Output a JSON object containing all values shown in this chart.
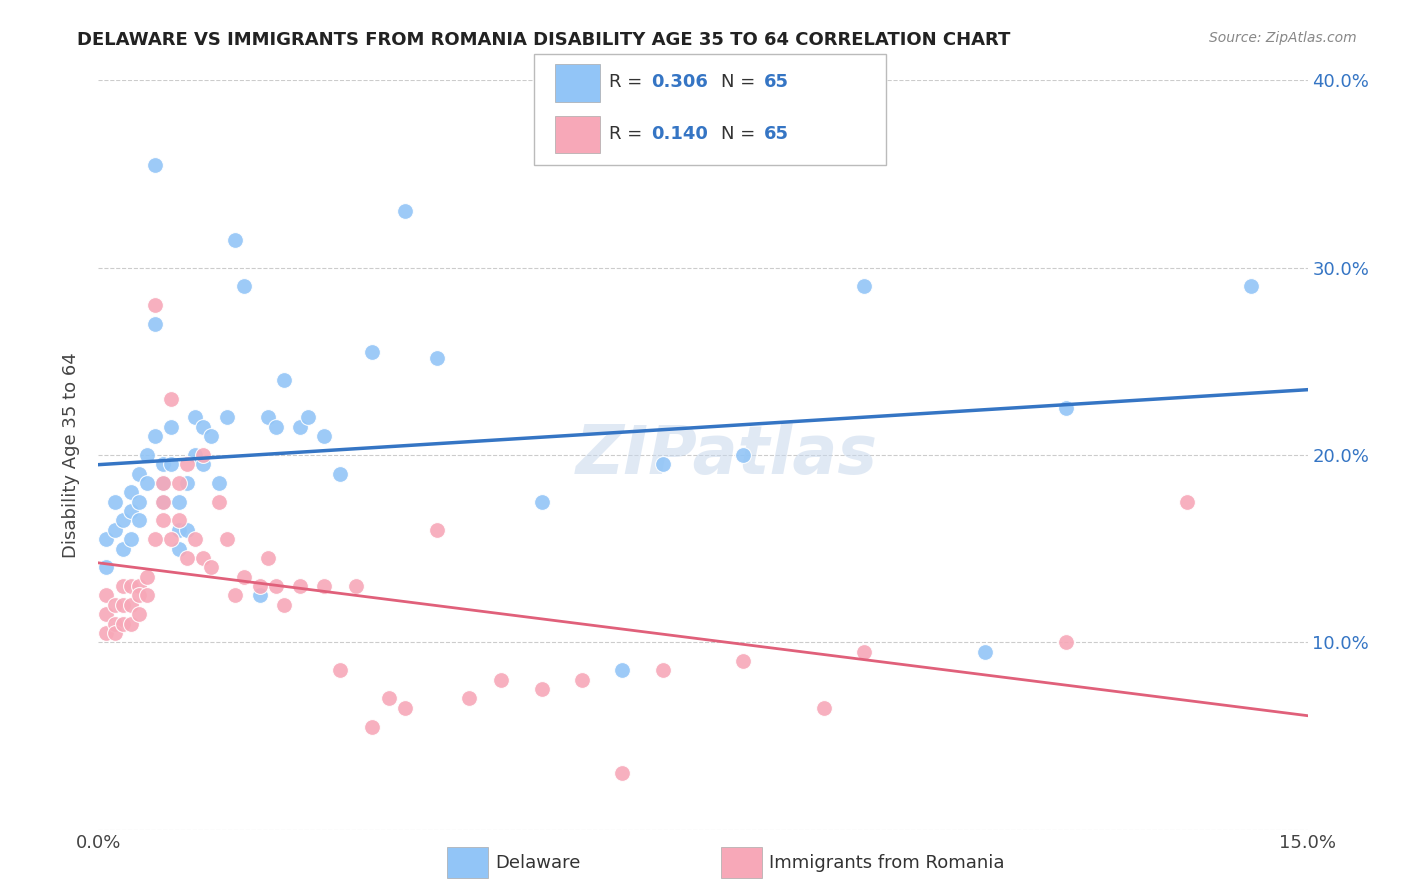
{
  "title": "DELAWARE VS IMMIGRANTS FROM ROMANIA DISABILITY AGE 35 TO 64 CORRELATION CHART",
  "source": "Source: ZipAtlas.com",
  "ylabel": "Disability Age 35 to 64",
  "x_min": 0.0,
  "x_max": 0.15,
  "y_min": 0.0,
  "y_max": 0.4,
  "watermark": "ZIPatlas",
  "color_blue": "#92c5f7",
  "color_blue_line": "#3575c4",
  "color_pink": "#f7a8b8",
  "color_pink_line": "#e0607a",
  "blue_x": [
    0.001,
    0.001,
    0.002,
    0.002,
    0.003,
    0.003,
    0.004,
    0.004,
    0.004,
    0.005,
    0.005,
    0.005,
    0.006,
    0.006,
    0.007,
    0.007,
    0.007,
    0.008,
    0.008,
    0.008,
    0.009,
    0.009,
    0.01,
    0.01,
    0.01,
    0.011,
    0.011,
    0.012,
    0.012,
    0.013,
    0.013,
    0.014,
    0.015,
    0.016,
    0.017,
    0.018,
    0.02,
    0.021,
    0.022,
    0.023,
    0.025,
    0.026,
    0.028,
    0.03,
    0.034,
    0.038,
    0.042,
    0.055,
    0.065,
    0.07,
    0.08,
    0.095,
    0.11,
    0.12,
    0.143
  ],
  "blue_y": [
    0.155,
    0.14,
    0.175,
    0.16,
    0.165,
    0.15,
    0.18,
    0.17,
    0.155,
    0.19,
    0.175,
    0.165,
    0.2,
    0.185,
    0.355,
    0.27,
    0.21,
    0.195,
    0.185,
    0.175,
    0.215,
    0.195,
    0.175,
    0.16,
    0.15,
    0.185,
    0.16,
    0.22,
    0.2,
    0.215,
    0.195,
    0.21,
    0.185,
    0.22,
    0.315,
    0.29,
    0.125,
    0.22,
    0.215,
    0.24,
    0.215,
    0.22,
    0.21,
    0.19,
    0.255,
    0.33,
    0.252,
    0.175,
    0.085,
    0.195,
    0.2,
    0.29,
    0.095,
    0.225,
    0.29
  ],
  "pink_x": [
    0.001,
    0.001,
    0.001,
    0.002,
    0.002,
    0.002,
    0.003,
    0.003,
    0.003,
    0.004,
    0.004,
    0.004,
    0.005,
    0.005,
    0.005,
    0.006,
    0.006,
    0.007,
    0.007,
    0.008,
    0.008,
    0.008,
    0.009,
    0.009,
    0.01,
    0.01,
    0.011,
    0.011,
    0.012,
    0.013,
    0.013,
    0.014,
    0.015,
    0.016,
    0.017,
    0.018,
    0.02,
    0.021,
    0.022,
    0.023,
    0.025,
    0.028,
    0.03,
    0.032,
    0.034,
    0.036,
    0.038,
    0.042,
    0.046,
    0.05,
    0.055,
    0.06,
    0.065,
    0.07,
    0.08,
    0.09,
    0.095,
    0.12,
    0.135
  ],
  "pink_y": [
    0.125,
    0.115,
    0.105,
    0.12,
    0.11,
    0.105,
    0.13,
    0.12,
    0.11,
    0.13,
    0.12,
    0.11,
    0.13,
    0.125,
    0.115,
    0.135,
    0.125,
    0.28,
    0.155,
    0.185,
    0.175,
    0.165,
    0.23,
    0.155,
    0.185,
    0.165,
    0.195,
    0.145,
    0.155,
    0.2,
    0.145,
    0.14,
    0.175,
    0.155,
    0.125,
    0.135,
    0.13,
    0.145,
    0.13,
    0.12,
    0.13,
    0.13,
    0.085,
    0.13,
    0.055,
    0.07,
    0.065,
    0.16,
    0.07,
    0.08,
    0.075,
    0.08,
    0.03,
    0.085,
    0.09,
    0.065,
    0.095,
    0.1,
    0.175
  ]
}
